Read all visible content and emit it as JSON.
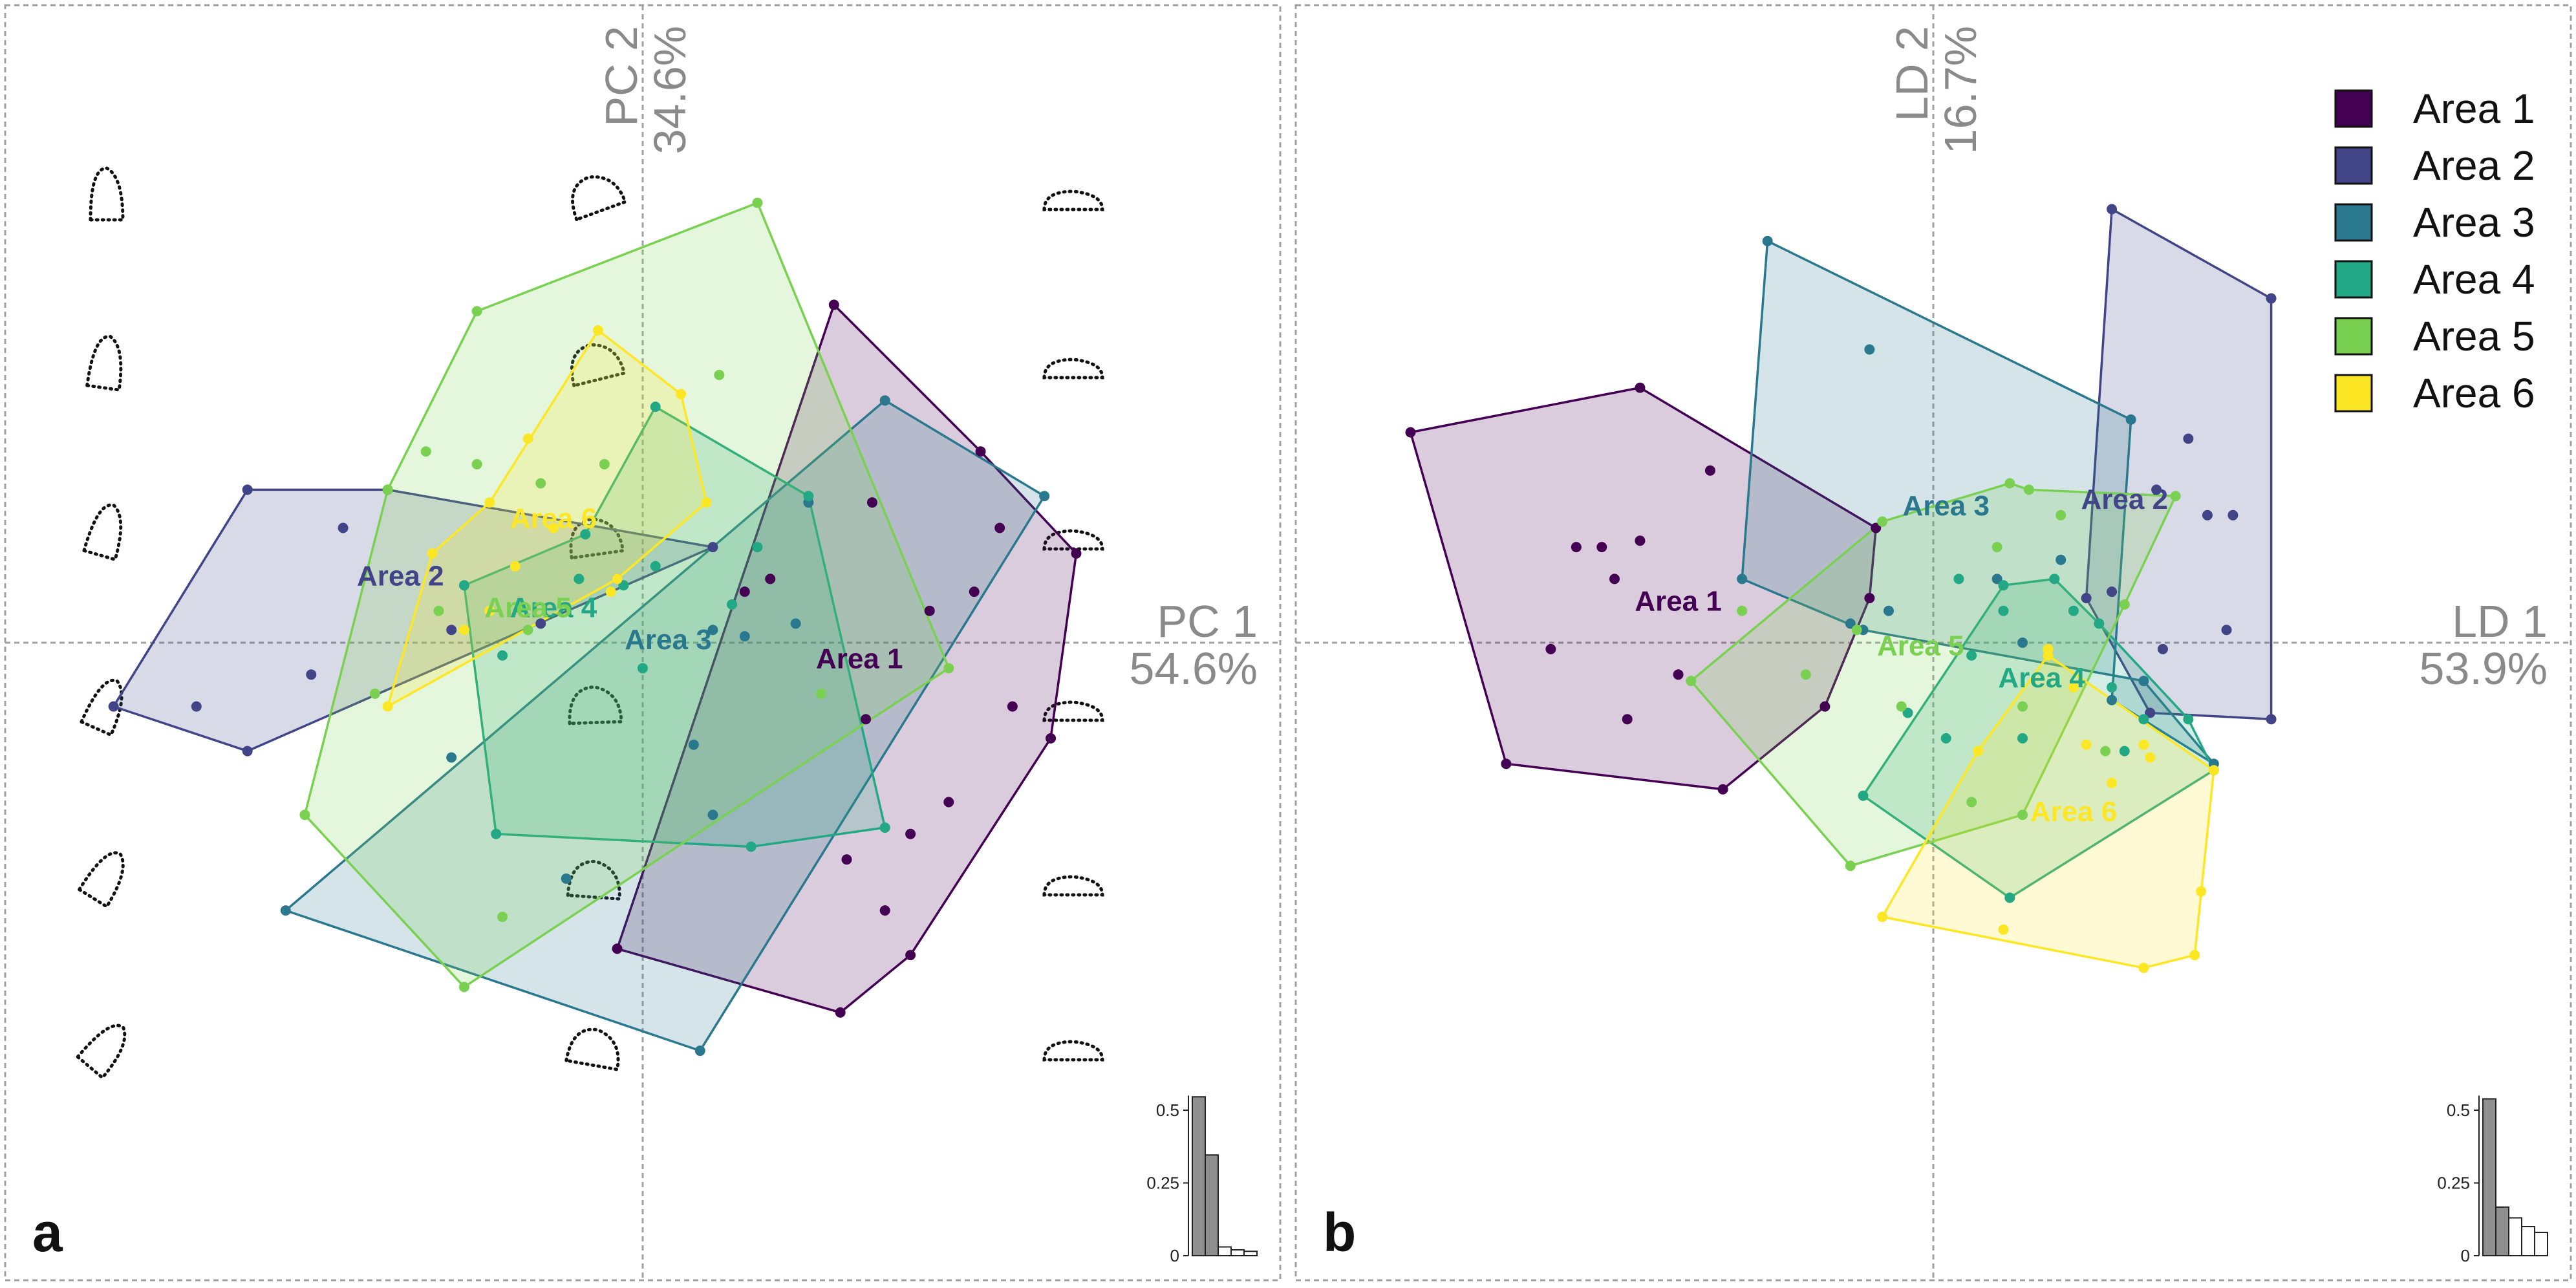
{
  "colors": {
    "Area 1": "#440154",
    "Area 2": "#414487",
    "Area 3": "#2a788e",
    "Area 4": "#22a884",
    "Area 5": "#7ad151",
    "Area 6": "#fde725"
  },
  "legend": [
    "Area 1",
    "Area 2",
    "Area 3",
    "Area 4",
    "Area 5",
    "Area 6"
  ],
  "chart_data": [
    {
      "type": "scatter",
      "panel_label": "a",
      "xlabel": "PC 1",
      "xlabel_pct": "54.6%",
      "ylabel": "PC 2",
      "ylabel_pct": "34.6%",
      "xlim": [
        -1,
        1
      ],
      "ylim": [
        -1,
        1
      ],
      "groups": [
        {
          "name": "Area 1",
          "label_at": [
            0.34,
            -0.04
          ],
          "hull": [
            [
              -0.04,
              -0.48
            ],
            [
              0.31,
              -0.58
            ],
            [
              0.42,
              -0.49
            ],
            [
              0.64,
              -0.15
            ],
            [
              0.68,
              0.14
            ],
            [
              0.53,
              0.3
            ],
            [
              0.3,
              0.53
            ]
          ],
          "points": [
            [
              0.45,
              0.05
            ],
            [
              0.52,
              0.08
            ],
            [
              0.56,
              0.18
            ],
            [
              0.35,
              -0.12
            ],
            [
              0.58,
              -0.1
            ],
            [
              0.48,
              -0.25
            ],
            [
              0.32,
              -0.34
            ],
            [
              0.38,
              -0.42
            ],
            [
              0.42,
              -0.3
            ],
            [
              0.2,
              0.1
            ],
            [
              0.36,
              0.22
            ],
            [
              0.16,
              0.08
            ]
          ]
        },
        {
          "name": "Area 2",
          "label_at": [
            -0.38,
            0.09
          ],
          "hull": [
            [
              -0.83,
              -0.1
            ],
            [
              -0.62,
              -0.17
            ],
            [
              0.11,
              0.15
            ],
            [
              -0.4,
              0.24
            ],
            [
              -0.62,
              0.24
            ]
          ],
          "points": [
            [
              -0.47,
              0.18
            ],
            [
              -0.52,
              -0.05
            ],
            [
              -0.3,
              0.02
            ],
            [
              -0.16,
              0.03
            ],
            [
              -0.04,
              0.1
            ],
            [
              -0.7,
              -0.1
            ]
          ]
        },
        {
          "name": "Area 3",
          "label_at": [
            0.04,
            -0.01
          ],
          "hull": [
            [
              -0.56,
              -0.42
            ],
            [
              0.09,
              -0.64
            ],
            [
              0.63,
              0.23
            ],
            [
              0.38,
              0.38
            ]
          ],
          "points": [
            [
              -0.3,
              -0.18
            ],
            [
              0.08,
              -0.16
            ],
            [
              0.11,
              -0.27
            ],
            [
              0.16,
              0.01
            ],
            [
              0.24,
              0.03
            ],
            [
              0.26,
              0.22
            ],
            [
              0.11,
              0.02
            ],
            [
              -0.12,
              -0.37
            ]
          ]
        },
        {
          "name": "Area 4",
          "label_at": [
            -0.14,
            0.04
          ],
          "hull": [
            [
              -0.23,
              -0.3
            ],
            [
              0.17,
              -0.32
            ],
            [
              0.38,
              -0.29
            ],
            [
              0.26,
              0.23
            ],
            [
              0.02,
              0.37
            ],
            [
              -0.09,
              0.17
            ],
            [
              -0.28,
              0.09
            ]
          ],
          "points": [
            [
              -0.1,
              0.1
            ],
            [
              0.02,
              0.12
            ],
            [
              0.14,
              0.06
            ],
            [
              0.18,
              0.15
            ],
            [
              -0.22,
              -0.02
            ],
            [
              -0.03,
              0.09
            ],
            [
              0.0,
              -0.04
            ]
          ]
        },
        {
          "name": "Area 5",
          "label_at": [
            -0.18,
            0.04
          ],
          "hull": [
            [
              -0.53,
              -0.27
            ],
            [
              -0.28,
              -0.54
            ],
            [
              0.48,
              -0.04
            ],
            [
              0.18,
              0.69
            ],
            [
              -0.26,
              0.52
            ],
            [
              -0.4,
              0.24
            ]
          ],
          "points": [
            [
              -0.34,
              0.3
            ],
            [
              -0.26,
              0.28
            ],
            [
              -0.16,
              0.25
            ],
            [
              -0.06,
              0.28
            ],
            [
              -0.42,
              -0.08
            ],
            [
              -0.22,
              -0.43
            ],
            [
              0.12,
              0.42
            ],
            [
              -0.18,
              0.02
            ],
            [
              0.28,
              -0.08
            ],
            [
              -0.32,
              0.05
            ]
          ]
        },
        {
          "name": "Area 6",
          "label_at": [
            -0.14,
            0.18
          ],
          "hull": [
            [
              -0.4,
              -0.1
            ],
            [
              -0.04,
              0.1
            ],
            [
              0.1,
              0.22
            ],
            [
              0.06,
              0.39
            ],
            [
              -0.07,
              0.49
            ],
            [
              -0.24,
              0.22
            ],
            [
              -0.33,
              0.14
            ]
          ],
          "points": [
            [
              -0.28,
              0.02
            ],
            [
              -0.2,
              0.12
            ],
            [
              -0.14,
              0.18
            ],
            [
              -0.05,
              0.08
            ],
            [
              -0.18,
              0.32
            ],
            [
              -0.24,
              0.05
            ]
          ]
        }
      ],
      "hist": {
        "yticks": [
          "0",
          "0.25",
          "0.5"
        ],
        "filled": [
          0.546,
          0.346
        ],
        "open": [
          0.03,
          0.02,
          0.015
        ]
      }
    },
    {
      "type": "scatter",
      "panel_label": "b",
      "xlabel": "LD 1",
      "xlabel_pct": "53.9%",
      "ylabel": "LD 2",
      "ylabel_pct": "16.7%",
      "xlim": [
        -1,
        1
      ],
      "ylim": [
        -1,
        1
      ],
      "groups": [
        {
          "name": "Area 1",
          "label_at": [
            -0.4,
            0.05
          ],
          "hull": [
            [
              -0.82,
              0.33
            ],
            [
              -0.46,
              0.4
            ],
            [
              -0.09,
              0.18
            ],
            [
              -0.1,
              0.07
            ],
            [
              -0.17,
              -0.1
            ],
            [
              -0.33,
              -0.23
            ],
            [
              -0.67,
              -0.19
            ]
          ],
          "points": [
            [
              -0.56,
              0.15
            ],
            [
              -0.52,
              0.15
            ],
            [
              -0.46,
              0.16
            ],
            [
              -0.48,
              -0.12
            ],
            [
              -0.6,
              -0.01
            ],
            [
              -0.35,
              0.27
            ],
            [
              -0.4,
              -0.05
            ],
            [
              -0.5,
              0.1
            ]
          ]
        },
        {
          "name": "Area 2",
          "label_at": [
            0.3,
            0.21
          ],
          "hull": [
            [
              0.24,
              0.07
            ],
            [
              0.28,
              0.68
            ],
            [
              0.53,
              0.54
            ],
            [
              0.53,
              -0.12
            ],
            [
              0.34,
              -0.11
            ]
          ],
          "points": [
            [
              0.4,
              0.32
            ],
            [
              0.47,
              0.2
            ],
            [
              0.46,
              0.02
            ],
            [
              0.28,
              0.08
            ],
            [
              0.36,
              -0.01
            ],
            [
              0.35,
              0.24
            ],
            [
              0.43,
              0.2
            ]
          ]
        },
        {
          "name": "Area 3",
          "label_at": [
            0.02,
            0.2
          ],
          "hull": [
            [
              -0.26,
              0.63
            ],
            [
              -0.3,
              0.1
            ],
            [
              -0.11,
              0.02
            ],
            [
              0.33,
              -0.06
            ],
            [
              0.44,
              -0.19
            ],
            [
              0.28,
              -0.09
            ],
            [
              0.31,
              0.35
            ]
          ],
          "points": [
            [
              -0.1,
              0.46
            ],
            [
              -0.07,
              0.05
            ],
            [
              0.1,
              0.1
            ],
            [
              0.2,
              0.13
            ],
            [
              0.14,
              0.0
            ],
            [
              -0.13,
              0.03
            ]
          ]
        },
        {
          "name": "Area 4",
          "label_at": [
            0.17,
            -0.07
          ],
          "hull": [
            [
              -0.11,
              -0.24
            ],
            [
              0.12,
              -0.4
            ],
            [
              0.44,
              -0.2
            ],
            [
              0.4,
              -0.12
            ],
            [
              0.26,
              0.03
            ],
            [
              0.19,
              0.1
            ],
            [
              0.11,
              0.09
            ]
          ],
          "points": [
            [
              0.04,
              0.1
            ],
            [
              0.11,
              0.05
            ],
            [
              0.22,
              0.05
            ],
            [
              0.28,
              -0.07
            ],
            [
              0.14,
              -0.15
            ],
            [
              0.02,
              -0.15
            ],
            [
              0.06,
              -0.02
            ],
            [
              0.33,
              -0.12
            ],
            [
              0.3,
              -0.17
            ],
            [
              -0.04,
              -0.11
            ]
          ]
        },
        {
          "name": "Area 5",
          "label_at": [
            -0.02,
            -0.02
          ],
          "hull": [
            [
              -0.38,
              -0.06
            ],
            [
              -0.13,
              -0.35
            ],
            [
              0.14,
              -0.27
            ],
            [
              0.3,
              0.06
            ],
            [
              0.38,
              0.23
            ],
            [
              0.15,
              0.24
            ],
            [
              0.12,
              0.25
            ],
            [
              -0.08,
              0.19
            ]
          ],
          "points": [
            [
              -0.3,
              0.05
            ],
            [
              -0.2,
              -0.05
            ],
            [
              -0.05,
              -0.1
            ],
            [
              0.1,
              0.15
            ],
            [
              0.2,
              0.2
            ],
            [
              0.27,
              -0.17
            ],
            [
              -0.12,
              0.02
            ],
            [
              0.06,
              -0.25
            ],
            [
              0.14,
              -0.1
            ]
          ]
        },
        {
          "name": "Area 6",
          "label_at": [
            0.22,
            -0.28
          ],
          "hull": [
            [
              -0.08,
              -0.43
            ],
            [
              0.33,
              -0.51
            ],
            [
              0.41,
              -0.49
            ],
            [
              0.44,
              -0.2
            ],
            [
              0.18,
              -0.02
            ],
            [
              0.07,
              -0.17
            ]
          ],
          "points": [
            [
              0.18,
              -0.01
            ],
            [
              0.24,
              -0.16
            ],
            [
              0.34,
              -0.18
            ],
            [
              0.33,
              -0.16
            ],
            [
              0.42,
              -0.39
            ],
            [
              0.11,
              -0.45
            ],
            [
              0.28,
              -0.22
            ],
            [
              0.22,
              -0.07
            ]
          ]
        }
      ],
      "hist": {
        "yticks": [
          "0",
          "0.25",
          "0.5"
        ],
        "filled": [
          0.539,
          0.167
        ],
        "open": [
          0.13,
          0.1,
          0.08
        ]
      }
    }
  ]
}
